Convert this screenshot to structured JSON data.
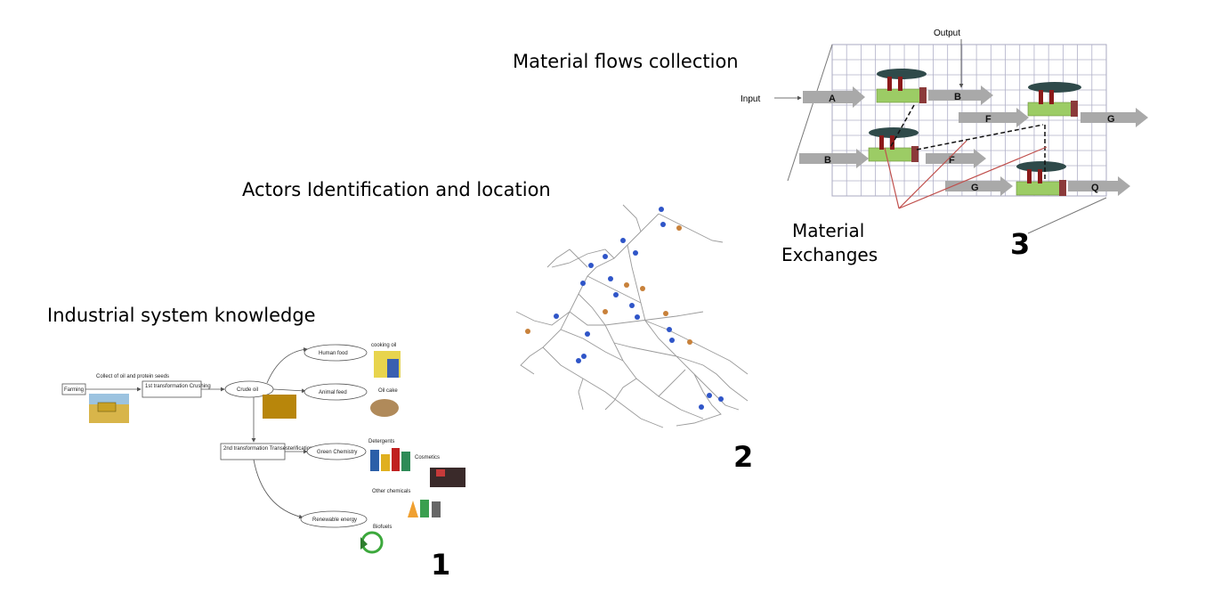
{
  "panels": {
    "p1": {
      "title": "Industrial system knowledge",
      "number": "1",
      "nodes": {
        "farming": "Farming",
        "collect": "Collect of oil and protein seeds",
        "first_transformation": "1st transformation Crushing",
        "crude_oil": "Crude oil",
        "human_food": "Human food",
        "animal_feed": "Animal feed",
        "second_transformation": "2nd transformation Transesterification",
        "green_chemistry": "Green Chemistry",
        "renewable_energy": "Renewable energy"
      },
      "products": {
        "cooking_oil": "cooking oil",
        "oil_cake": "Oil cake",
        "detergents": "Detergents",
        "cosmetics": "Cosmetics",
        "other_chemicals": "Other chemicals",
        "biofuels": "Biofuels"
      }
    },
    "p2": {
      "title": "Actors Identification and location",
      "number": "2"
    },
    "p3": {
      "title": "Material flows collection",
      "number": "3",
      "output_label": "Output",
      "input_label": "Input",
      "flows": [
        "A",
        "B",
        "F",
        "G",
        "B",
        "F",
        "G",
        "Q"
      ],
      "exchanges_line1": "Material",
      "exchanges_line2": "Exchanges"
    }
  },
  "colors": {
    "arrow": "#a9a9a9",
    "grid": "#a8a8c0",
    "factory": "#9ccc65",
    "exchange_line": "#c0504d",
    "actor_blue": "#2f55c8",
    "actor_orange": "#c8813a"
  }
}
